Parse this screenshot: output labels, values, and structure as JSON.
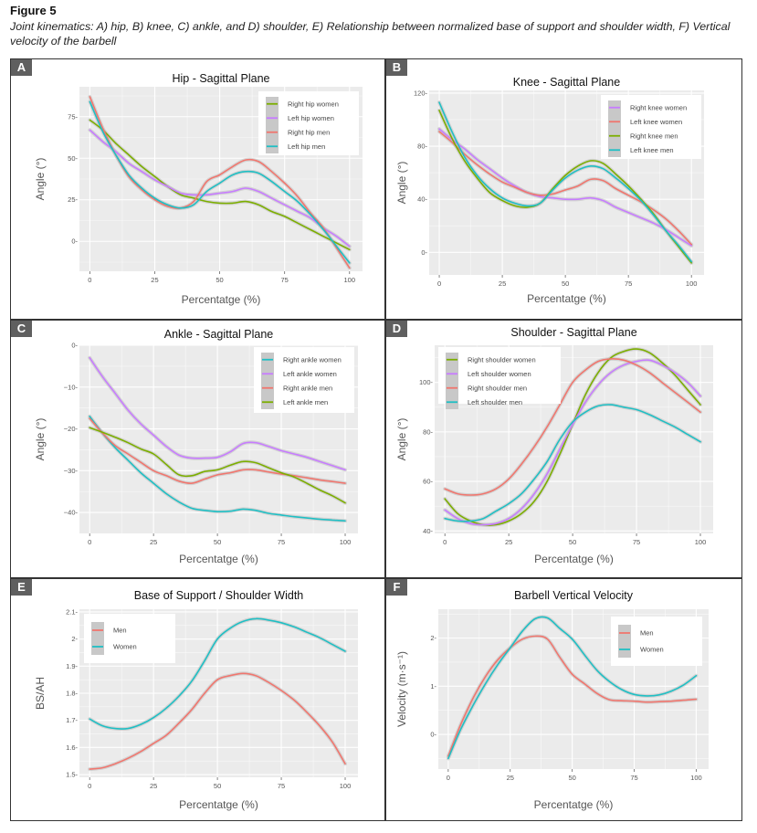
{
  "figure": {
    "title": "Figure 5",
    "caption": "Joint kinematics: A) hip, B) knee, C) ankle, and D) shoulder, E) Relationship between normalized base of support and shoulder width, F) Vertical velocity of the barbell"
  },
  "colors": {
    "red": "#F0766E",
    "green": "#7CAE00",
    "teal": "#1FBFC4",
    "purple": "#C77CFF",
    "panel_bg": "#EBEBEB",
    "grid": "#FFFFFF",
    "ribbon": "#BEBEBE"
  },
  "chart_data": [
    {
      "panel": "A",
      "type": "line",
      "title": "Hip - Sagittal Plane",
      "xlabel": "Percentatge (%)",
      "ylabel": "Angle (°)",
      "xlim": [
        -4,
        105
      ],
      "ylim": [
        -18,
        93
      ],
      "xticks": [
        0,
        25,
        50,
        75,
        100
      ],
      "yticks": [
        0,
        25,
        50,
        75
      ],
      "grid": true,
      "legend_position": "top-right",
      "x": [
        0,
        5,
        10,
        15,
        20,
        25,
        30,
        35,
        40,
        45,
        50,
        55,
        60,
        65,
        70,
        75,
        80,
        85,
        90,
        95,
        100
      ],
      "series": [
        {
          "name": "Right hip women",
          "color": "green",
          "values": [
            73,
            67,
            59,
            52,
            45,
            39,
            33,
            28,
            26,
            24,
            23,
            23,
            24,
            22,
            18,
            15,
            11,
            7,
            3,
            -1,
            -5
          ]
        },
        {
          "name": "Left hip women",
          "color": "purple",
          "values": [
            67,
            60,
            54,
            47,
            42,
            37,
            33,
            29,
            28,
            28,
            29,
            30,
            32,
            30,
            26,
            22,
            18,
            14,
            8,
            3,
            -3
          ]
        },
        {
          "name": "Right hip men",
          "color": "red",
          "values": [
            87,
            68,
            52,
            39,
            31,
            25,
            21,
            20,
            24,
            36,
            40,
            45,
            49,
            48,
            42,
            35,
            27,
            17,
            8,
            -4,
            -16
          ]
        },
        {
          "name": "Left hip men",
          "color": "teal",
          "values": [
            84,
            66,
            52,
            40,
            32,
            26,
            22,
            20,
            22,
            30,
            35,
            40,
            42,
            41,
            36,
            30,
            24,
            16,
            7,
            -3,
            -13
          ]
        }
      ]
    },
    {
      "panel": "B",
      "type": "line",
      "title": "Knee - Sagittal Plane",
      "xlabel": "Percentatge (%)",
      "ylabel": "Angle (°)",
      "xlim": [
        -4,
        105
      ],
      "ylim": [
        -17,
        122
      ],
      "xticks": [
        0,
        25,
        50,
        75,
        100
      ],
      "yticks": [
        0,
        40,
        80,
        120
      ],
      "grid": true,
      "legend_position": "top-right",
      "x": [
        0,
        5,
        10,
        15,
        20,
        25,
        30,
        35,
        40,
        45,
        50,
        55,
        60,
        65,
        70,
        75,
        80,
        85,
        90,
        95,
        100
      ],
      "series": [
        {
          "name": "Right knee women",
          "color": "purple",
          "values": [
            93,
            85,
            78,
            70,
            63,
            56,
            50,
            45,
            42,
            41,
            40,
            40,
            41,
            39,
            34,
            30,
            26,
            22,
            17,
            11,
            5
          ]
        },
        {
          "name": "Left knee women",
          "color": "red",
          "values": [
            91,
            83,
            74,
            66,
            59,
            53,
            49,
            45,
            43,
            44,
            47,
            50,
            55,
            54,
            48,
            43,
            38,
            32,
            25,
            16,
            6
          ]
        },
        {
          "name": "Right knee men",
          "color": "green",
          "values": [
            107,
            86,
            69,
            56,
            45,
            39,
            35,
            34,
            37,
            48,
            58,
            65,
            69,
            67,
            59,
            50,
            40,
            29,
            16,
            4,
            -8
          ]
        },
        {
          "name": "Left knee men",
          "color": "teal",
          "values": [
            113,
            91,
            72,
            58,
            48,
            41,
            37,
            35,
            37,
            47,
            56,
            62,
            65,
            63,
            56,
            48,
            39,
            28,
            16,
            5,
            -7
          ]
        }
      ]
    },
    {
      "panel": "C",
      "type": "line",
      "title": "Ankle - Sagittal Plane",
      "xlabel": "Percentatge (%)",
      "ylabel": "Angle (°)",
      "xlim": [
        -4,
        105
      ],
      "ylim": [
        -45,
        0
      ],
      "xticks": [
        0,
        25,
        50,
        75,
        100
      ],
      "yticks": [
        0,
        -10,
        -20,
        -30,
        -40
      ],
      "grid": true,
      "legend_position": "top-right",
      "x": [
        0,
        5,
        10,
        15,
        20,
        25,
        30,
        35,
        40,
        45,
        50,
        55,
        60,
        65,
        70,
        75,
        80,
        85,
        90,
        95,
        100
      ],
      "series": [
        {
          "name": "Right ankle women",
          "color": "teal",
          "values": [
            -17,
            -21,
            -24.5,
            -27.5,
            -30.5,
            -33,
            -35.5,
            -37.5,
            -39,
            -39.5,
            -39.8,
            -39.7,
            -39.2,
            -39.5,
            -40.2,
            -40.6,
            -41,
            -41.3,
            -41.6,
            -41.8,
            -42
          ]
        },
        {
          "name": "Left ankle women",
          "color": "purple",
          "values": [
            -3,
            -7.5,
            -11.5,
            -15.5,
            -18.8,
            -21.5,
            -24.2,
            -26.3,
            -27,
            -27,
            -26.8,
            -25.5,
            -23.5,
            -23.3,
            -24.2,
            -25.2,
            -26,
            -26.8,
            -27.8,
            -28.8,
            -29.8
          ]
        },
        {
          "name": "Right ankle men",
          "color": "red",
          "values": [
            -17.5,
            -21,
            -24,
            -26,
            -28,
            -30,
            -31.2,
            -32.5,
            -33,
            -32,
            -31,
            -30.5,
            -29.8,
            -29.8,
            -30.3,
            -30.8,
            -31.2,
            -31.7,
            -32.2,
            -32.6,
            -33
          ]
        },
        {
          "name": "Left ankle men",
          "color": "green",
          "values": [
            -19.7,
            -20.8,
            -22,
            -23.3,
            -24.8,
            -26,
            -28.5,
            -31,
            -31.2,
            -30.2,
            -29.8,
            -28.7,
            -27.8,
            -28.1,
            -29.3,
            -30.5,
            -31.5,
            -33,
            -34.6,
            -36,
            -37.7
          ]
        }
      ]
    },
    {
      "panel": "D",
      "type": "line",
      "title": "Shoulder - Sagittal Plane",
      "xlabel": "Percentatge (%)",
      "ylabel": "Angle (°)",
      "xlim": [
        -4,
        105
      ],
      "ylim": [
        39,
        115
      ],
      "xticks": [
        0,
        25,
        50,
        75,
        100
      ],
      "yticks": [
        40,
        60,
        80,
        100
      ],
      "grid": true,
      "legend_position": "top-left",
      "x": [
        0,
        5,
        10,
        15,
        20,
        25,
        30,
        35,
        40,
        45,
        50,
        55,
        60,
        65,
        70,
        75,
        80,
        85,
        90,
        95,
        100
      ],
      "series": [
        {
          "name": "Right shoulder women",
          "color": "green",
          "values": [
            53,
            47,
            44,
            42.5,
            42.5,
            44,
            47,
            52,
            60,
            71,
            83,
            95,
            104,
            110,
            112.5,
            113.5,
            112,
            108,
            103,
            97,
            91
          ]
        },
        {
          "name": "Left shoulder women",
          "color": "purple",
          "values": [
            48.5,
            45,
            43,
            42.5,
            43,
            45,
            49,
            55,
            63,
            73,
            83,
            92,
            99,
            104,
            107,
            108.5,
            109,
            107,
            104,
            100,
            94.5
          ]
        },
        {
          "name": "Right shoulder men",
          "color": "red",
          "values": [
            57,
            55,
            54.5,
            55,
            57,
            61,
            67,
            74,
            82,
            91,
            100,
            105,
            108.5,
            109.5,
            109,
            107,
            104,
            100,
            96,
            92,
            88
          ]
        },
        {
          "name": "Left shoulder men",
          "color": "teal",
          "values": [
            45,
            44,
            44,
            45,
            48,
            51,
            55,
            61,
            68,
            77,
            84,
            88,
            90.5,
            91,
            90,
            89,
            87,
            84.5,
            82,
            79,
            76
          ]
        }
      ]
    },
    {
      "panel": "E",
      "type": "line",
      "title": "Base of Support / Shoulder Width",
      "xlabel": "Percentatge (%)",
      "ylabel": "BS/AH",
      "xlim": [
        -4,
        105
      ],
      "ylim": [
        1.49,
        2.11
      ],
      "xticks": [
        0,
        25,
        50,
        75,
        100
      ],
      "yticks": [
        1.5,
        1.6,
        1.7,
        1.8,
        1.9,
        2.0,
        2.1
      ],
      "grid": true,
      "legend_position": "top-left",
      "x": [
        0,
        5,
        10,
        15,
        20,
        25,
        30,
        35,
        40,
        45,
        50,
        55,
        60,
        65,
        70,
        75,
        80,
        85,
        90,
        95,
        100
      ],
      "series": [
        {
          "name": "Men",
          "color": "red",
          "values": [
            1.52,
            1.525,
            1.54,
            1.56,
            1.585,
            1.615,
            1.645,
            1.69,
            1.74,
            1.8,
            1.85,
            1.865,
            1.873,
            1.865,
            1.84,
            1.81,
            1.775,
            1.73,
            1.68,
            1.62,
            1.54
          ]
        },
        {
          "name": "Women",
          "color": "teal",
          "values": [
            1.705,
            1.68,
            1.67,
            1.67,
            1.685,
            1.71,
            1.745,
            1.79,
            1.845,
            1.92,
            2.0,
            2.04,
            2.065,
            2.075,
            2.07,
            2.06,
            2.045,
            2.025,
            2.005,
            1.98,
            1.955
          ]
        }
      ]
    },
    {
      "panel": "F",
      "type": "line",
      "title": "Barbell Vertical Velocity",
      "xlabel": "Percentatge (%)",
      "ylabel": "Velocity (m·s⁻¹)",
      "xlim": [
        -4,
        105
      ],
      "ylim": [
        -0.72,
        2.6
      ],
      "xticks": [
        0,
        25,
        50,
        75,
        100
      ],
      "yticks": [
        0,
        1,
        2
      ],
      "grid": true,
      "legend_position": "top-right",
      "x": [
        0,
        5,
        10,
        15,
        20,
        25,
        30,
        35,
        40,
        45,
        50,
        55,
        60,
        65,
        70,
        75,
        80,
        85,
        90,
        95,
        100
      ],
      "series": [
        {
          "name": "Men",
          "color": "red",
          "values": [
            -0.45,
            0.2,
            0.75,
            1.2,
            1.55,
            1.8,
            1.98,
            2.04,
            1.98,
            1.6,
            1.25,
            1.05,
            0.85,
            0.72,
            0.7,
            0.69,
            0.67,
            0.68,
            0.69,
            0.71,
            0.73
          ]
        },
        {
          "name": "Women",
          "color": "teal",
          "values": [
            -0.5,
            0.1,
            0.6,
            1.05,
            1.45,
            1.8,
            2.15,
            2.4,
            2.42,
            2.2,
            1.98,
            1.65,
            1.33,
            1.1,
            0.93,
            0.83,
            0.8,
            0.82,
            0.9,
            1.03,
            1.22
          ]
        }
      ]
    }
  ]
}
